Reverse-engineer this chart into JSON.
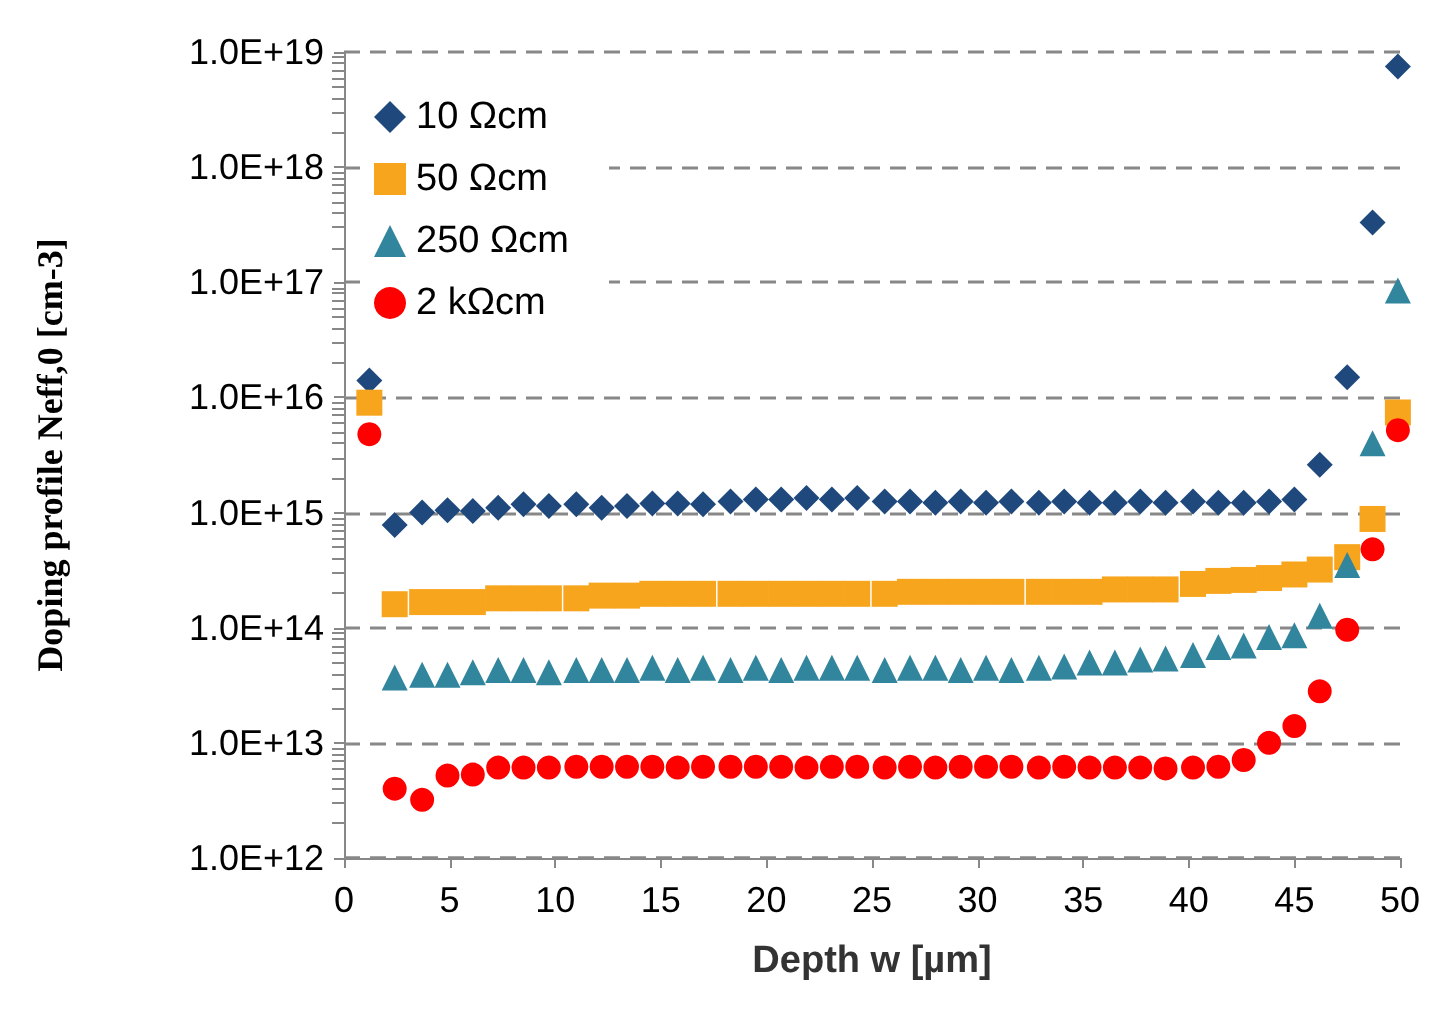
{
  "chart_data": {
    "type": "scatter",
    "xlabel": "Depth w [µm]",
    "ylabel": "Doping profile Neff,0 [cm-3]",
    "x": [
      1.2,
      2.4,
      3.7,
      4.9,
      6.1,
      7.3,
      8.5,
      9.7,
      11.0,
      12.2,
      13.4,
      14.6,
      15.8,
      17.0,
      18.3,
      19.5,
      20.7,
      21.9,
      23.1,
      24.3,
      25.6,
      26.8,
      28.0,
      29.2,
      30.4,
      31.6,
      32.9,
      34.1,
      35.3,
      36.5,
      37.7,
      38.9,
      40.2,
      41.4,
      42.6,
      43.8,
      45.0,
      46.2,
      47.5,
      48.7,
      49.9
    ],
    "series": [
      {
        "name": "10 Ωcm",
        "color": "#1f497d",
        "marker": "diamond",
        "values": [
          1.4e+16,
          780000000000000.0,
          1000000000000000.0,
          1050000000000000.0,
          1030000000000000.0,
          1100000000000000.0,
          1180000000000000.0,
          1140000000000000.0,
          1180000000000000.0,
          1100000000000000.0,
          1140000000000000.0,
          1200000000000000.0,
          1200000000000000.0,
          1180000000000000.0,
          1250000000000000.0,
          1300000000000000.0,
          1300000000000000.0,
          1340000000000000.0,
          1300000000000000.0,
          1340000000000000.0,
          1250000000000000.0,
          1250000000000000.0,
          1220000000000000.0,
          1250000000000000.0,
          1220000000000000.0,
          1250000000000000.0,
          1220000000000000.0,
          1250000000000000.0,
          1220000000000000.0,
          1220000000000000.0,
          1250000000000000.0,
          1220000000000000.0,
          1250000000000000.0,
          1220000000000000.0,
          1220000000000000.0,
          1250000000000000.0,
          1300000000000000.0,
          2600000000000000.0,
          1.5e+16,
          3.3e+17,
          7.5e+18
        ]
      },
      {
        "name": "50 Ωcm",
        "color": "#f8a51e",
        "marker": "square",
        "values": [
          9000000000000000.0,
          160000000000000.0,
          167000000000000.0,
          167000000000000.0,
          167000000000000.0,
          180000000000000.0,
          180000000000000.0,
          180000000000000.0,
          180000000000000.0,
          190000000000000.0,
          190000000000000.0,
          197000000000000.0,
          197000000000000.0,
          197000000000000.0,
          197000000000000.0,
          197000000000000.0,
          197000000000000.0,
          197000000000000.0,
          197000000000000.0,
          197000000000000.0,
          197000000000000.0,
          205000000000000.0,
          205000000000000.0,
          205000000000000.0,
          205000000000000.0,
          205000000000000.0,
          205000000000000.0,
          205000000000000.0,
          205000000000000.0,
          215000000000000.0,
          215000000000000.0,
          215000000000000.0,
          240000000000000.0,
          255000000000000.0,
          260000000000000.0,
          270000000000000.0,
          290000000000000.0,
          320000000000000.0,
          410000000000000.0,
          880000000000000.0,
          7400000000000000.0
        ]
      },
      {
        "name": "250 Ωcm",
        "color": "#31859c",
        "marker": "triangle",
        "values": [
          null,
          37000000000000.0,
          39000000000000.0,
          39000000000000.0,
          41000000000000.0,
          43000000000000.0,
          43000000000000.0,
          41000000000000.0,
          43000000000000.0,
          43000000000000.0,
          43000000000000.0,
          45000000000000.0,
          43000000000000.0,
          45000000000000.0,
          43000000000000.0,
          45000000000000.0,
          43000000000000.0,
          45000000000000.0,
          45000000000000.0,
          45000000000000.0,
          43000000000000.0,
          45000000000000.0,
          45000000000000.0,
          43000000000000.0,
          45000000000000.0,
          43000000000000.0,
          45000000000000.0,
          46000000000000.0,
          50000000000000.0,
          50000000000000.0,
          53000000000000.0,
          54000000000000.0,
          58000000000000.0,
          68000000000000.0,
          70000000000000.0,
          83000000000000.0,
          86000000000000.0,
          127000000000000.0,
          350000000000000.0,
          4000000000000000.0,
          8.5e+16
        ]
      },
      {
        "name": "2 kΩcm",
        "color": "#ff0000",
        "marker": "circle",
        "values": [
          4800000000000000.0,
          4000000000000.0,
          3200000000000.0,
          5200000000000.0,
          5300000000000.0,
          6100000000000.0,
          6100000000000.0,
          6100000000000.0,
          6200000000000.0,
          6200000000000.0,
          6200000000000.0,
          6200000000000.0,
          6100000000000.0,
          6200000000000.0,
          6200000000000.0,
          6200000000000.0,
          6200000000000.0,
          6100000000000.0,
          6200000000000.0,
          6200000000000.0,
          6100000000000.0,
          6200000000000.0,
          6100000000000.0,
          6200000000000.0,
          6200000000000.0,
          6200000000000.0,
          6100000000000.0,
          6200000000000.0,
          6100000000000.0,
          6100000000000.0,
          6100000000000.0,
          6000000000000.0,
          6100000000000.0,
          6200000000000.0,
          7100000000000.0,
          10000000000000.0,
          14000000000000.0,
          28000000000000.0,
          96000000000000.0,
          480000000000000.0,
          5200000000000000.0
        ]
      }
    ],
    "xlim": [
      0,
      50
    ],
    "xticks": [
      0,
      5,
      10,
      15,
      20,
      25,
      30,
      35,
      40,
      45,
      50
    ],
    "ylim": [
      1000000000000.0,
      1e+19
    ],
    "yticks": [
      {
        "value": 1000000000000.0,
        "label": "1.0E+12"
      },
      {
        "value": 10000000000000.0,
        "label": "1.0E+13"
      },
      {
        "value": 100000000000000.0,
        "label": "1.0E+14"
      },
      {
        "value": 1000000000000000.0,
        "label": "1.0E+15"
      },
      {
        "value": 1e+16,
        "label": "1.0E+16"
      },
      {
        "value": 1e+17,
        "label": "1.0E+17"
      },
      {
        "value": 1e+18,
        "label": "1.0E+18"
      },
      {
        "value": 1e+19,
        "label": "1.0E+19"
      }
    ],
    "log": "y",
    "grid": "y",
    "legend": "top left"
  }
}
